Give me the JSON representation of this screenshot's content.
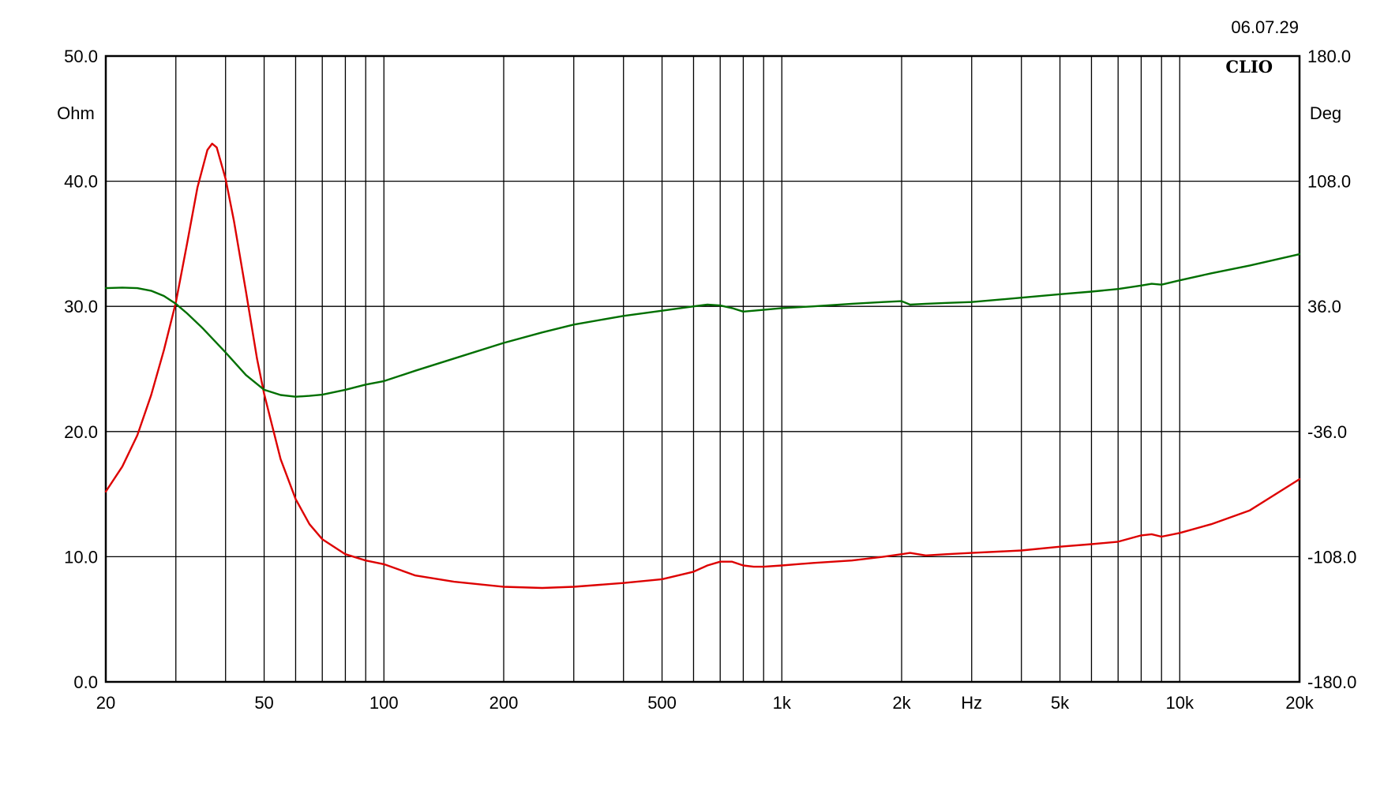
{
  "chart_data": {
    "type": "line",
    "stamp": "06.07.29",
    "logo": "CLIO",
    "x_scale": "log",
    "xlim": [
      20,
      20000
    ],
    "x_tick_labels": [
      {
        "value": 20,
        "label": "20"
      },
      {
        "value": 50,
        "label": "50"
      },
      {
        "value": 100,
        "label": "100"
      },
      {
        "value": 200,
        "label": "200"
      },
      {
        "value": 500,
        "label": "500"
      },
      {
        "value": 1000,
        "label": "1k"
      },
      {
        "value": 2000,
        "label": "2k"
      },
      {
        "value": 3000,
        "label": "Hz"
      },
      {
        "value": 5000,
        "label": "5k"
      },
      {
        "value": 10000,
        "label": "10k"
      },
      {
        "value": 20000,
        "label": "20k"
      }
    ],
    "grid_x": [
      30,
      40,
      50,
      60,
      70,
      80,
      90,
      100,
      200,
      300,
      400,
      500,
      600,
      700,
      800,
      900,
      1000,
      2000,
      3000,
      4000,
      5000,
      6000,
      7000,
      8000,
      9000,
      10000
    ],
    "y_left": {
      "unit": "Ohm",
      "lim": [
        0,
        50
      ],
      "ticks": [
        "0.0",
        "10.0",
        "20.0",
        "30.0",
        "40.0",
        "50.0"
      ]
    },
    "y_right": {
      "unit": "Deg",
      "lim": [
        -180,
        180
      ],
      "ticks": [
        "-180.0",
        "-108.0",
        "-36.0",
        "36.0",
        "108.0",
        "180.0"
      ]
    },
    "grid": true,
    "series": [
      {
        "axis": "left",
        "color": "#dd0000",
        "x": [
          20,
          22,
          24,
          26,
          28,
          30,
          32,
          34,
          36,
          37,
          38,
          40,
          42,
          45,
          48,
          50,
          55,
          60,
          65,
          70,
          80,
          90,
          100,
          120,
          150,
          200,
          250,
          300,
          400,
          500,
          600,
          650,
          700,
          750,
          800,
          850,
          900,
          1000,
          1200,
          1500,
          1800,
          2000,
          2100,
          2300,
          2600,
          3000,
          4000,
          5000,
          6000,
          7000,
          8000,
          8500,
          9000,
          10000,
          12000,
          15000,
          20000
        ],
        "values": [
          15.2,
          17.2,
          19.7,
          22.9,
          26.5,
          30.3,
          35.0,
          39.5,
          42.5,
          43.0,
          42.7,
          40.2,
          36.8,
          31.2,
          25.8,
          23.0,
          17.8,
          14.6,
          12.6,
          11.4,
          10.2,
          9.7,
          9.4,
          8.5,
          8.0,
          7.6,
          7.5,
          7.6,
          7.9,
          8.2,
          8.8,
          9.3,
          9.6,
          9.6,
          9.3,
          9.2,
          9.2,
          9.3,
          9.5,
          9.7,
          10.0,
          10.2,
          10.3,
          10.1,
          10.2,
          10.3,
          10.5,
          10.8,
          11.0,
          11.2,
          11.7,
          11.8,
          11.6,
          11.9,
          12.6,
          13.7,
          16.2
        ]
      },
      {
        "axis": "right",
        "color": "#006f00",
        "x": [
          20,
          22,
          24,
          26,
          28,
          30,
          32,
          35,
          40,
          45,
          50,
          55,
          60,
          65,
          70,
          80,
          90,
          100,
          120,
          150,
          200,
          250,
          300,
          400,
          500,
          600,
          650,
          700,
          750,
          800,
          850,
          900,
          1000,
          1200,
          1500,
          1800,
          2000,
          2100,
          2300,
          2600,
          3000,
          4000,
          5000,
          6000,
          7000,
          8000,
          8500,
          9000,
          10000,
          12000,
          15000,
          20000
        ],
        "values": [
          46.5,
          46.8,
          46.5,
          45.0,
          42.0,
          37.5,
          32.0,
          23.5,
          9.5,
          -3.5,
          -12.0,
          -15.0,
          -16.0,
          -15.5,
          -14.8,
          -12.0,
          -9.0,
          -7.0,
          -1.0,
          6.0,
          15.0,
          21.0,
          25.5,
          30.5,
          33.5,
          36.0,
          37.0,
          36.5,
          35.0,
          33.0,
          33.5,
          34.0,
          35.0,
          36.0,
          37.5,
          38.5,
          39.0,
          37.0,
          37.5,
          38.0,
          38.5,
          41.0,
          43.0,
          44.5,
          46.0,
          48.0,
          49.0,
          48.5,
          51.0,
          55.0,
          59.5,
          66.0
        ]
      }
    ]
  }
}
